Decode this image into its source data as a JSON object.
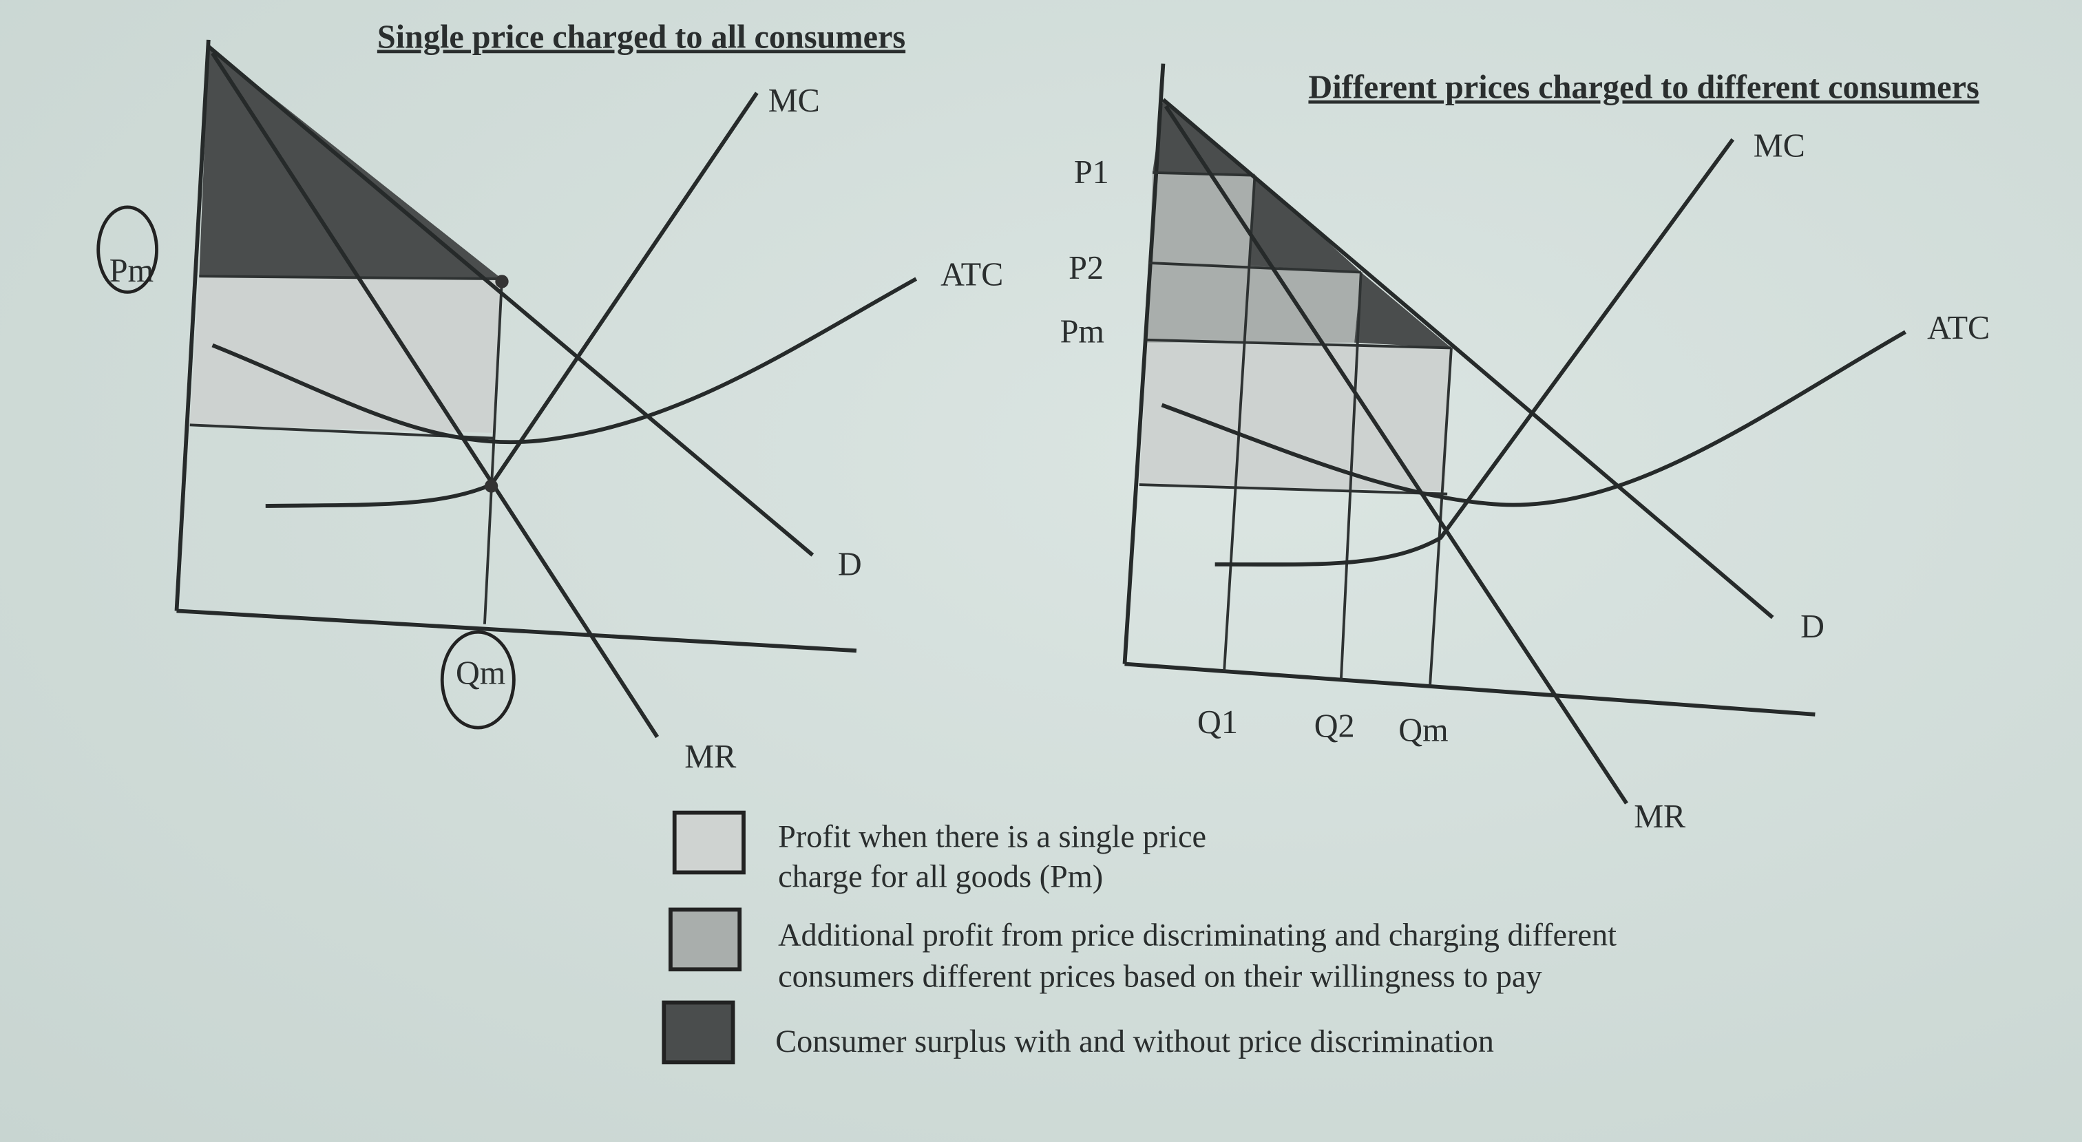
{
  "left_chart": {
    "title": "Single price charged to all consumers",
    "labels": {
      "mc": "MC",
      "atc": "ATC",
      "d": "D",
      "mr": "MR",
      "qm": "Qm",
      "pm": "Pm"
    }
  },
  "right_chart": {
    "title": "Different prices charged to different consumers",
    "labels": {
      "mc": "MC",
      "atc": "ATC",
      "d": "D",
      "mr": "MR",
      "p1": "P1",
      "p2": "P2",
      "pm": "Pm",
      "q1": "Q1",
      "q2": "Q2",
      "qm": "Qm"
    }
  },
  "legend": [
    {
      "line1": "Profit when there is a single price",
      "line2": "charge for all goods (Pm)",
      "color": "#cfd3d1"
    },
    {
      "line1": "Additional profit from price discriminating and charging different",
      "line2": "consumers different prices based on their willingness to pay",
      "color": "#a9aeac"
    },
    {
      "line1": "Consumer surplus with and without price discrimination",
      "line2": "",
      "color": "#4a4d4d"
    }
  ],
  "colors": {
    "paper": "#d3dfdb",
    "ink": "#262a2a"
  }
}
